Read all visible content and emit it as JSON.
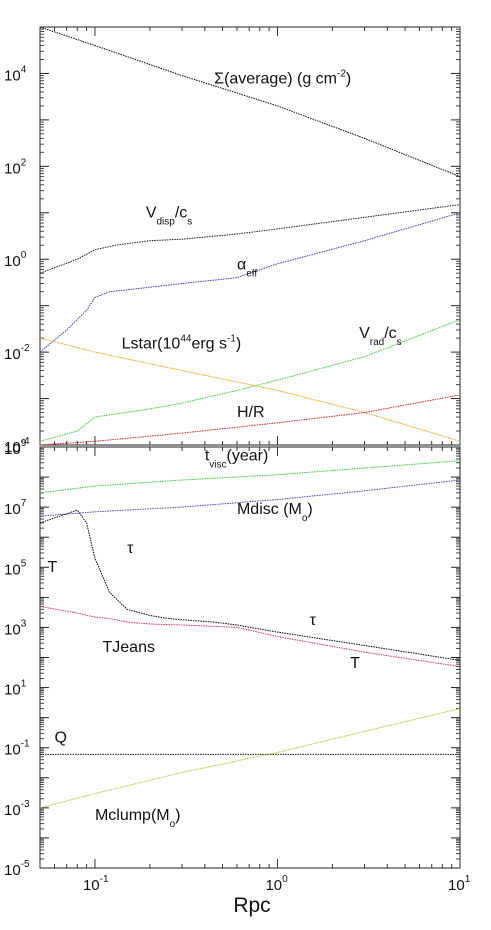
{
  "chart_data": [
    {
      "type": "line",
      "panel": "top",
      "xscale": "log",
      "yscale": "log",
      "xlim": [
        0.05,
        10
      ],
      "ylim": [
        0.0001,
        100000
      ],
      "yticks": [
        {
          "value": 10000,
          "base": "10",
          "exp": "4"
        },
        {
          "value": 100,
          "base": "10",
          "exp": "2"
        },
        {
          "value": 1,
          "base": "10",
          "exp": "0"
        },
        {
          "value": 0.01,
          "base": "10",
          "exp": "-2"
        },
        {
          "value": 0.0001,
          "base": "10",
          "exp": "-4"
        }
      ],
      "series": [
        {
          "color": "#000000",
          "x": [
            0.05,
            0.1,
            0.3,
            1,
            3,
            10
          ],
          "y": [
            100000,
            40000,
            9000,
            2000,
            400,
            60
          ]
        },
        {
          "color": "#1a1a1a",
          "x": [
            0.05,
            0.08,
            0.1,
            0.13,
            0.2,
            0.3,
            0.6,
            1,
            3,
            10
          ],
          "y": [
            0.5,
            1,
            1.6,
            2,
            2.5,
            2.7,
            3.5,
            4.5,
            8,
            15
          ]
        },
        {
          "color": "#3a3acc",
          "x": [
            0.05,
            0.07,
            0.09,
            0.1,
            0.12,
            0.15,
            0.2,
            0.3,
            0.6,
            1,
            3,
            10
          ],
          "y": [
            0.01,
            0.03,
            0.08,
            0.15,
            0.2,
            0.22,
            0.25,
            0.3,
            0.4,
            0.8,
            2.5,
            10
          ]
        },
        {
          "color": "#33cc33",
          "x": [
            0.05,
            0.08,
            0.1,
            0.2,
            0.3,
            0.6,
            1,
            3,
            10
          ],
          "y": [
            0.00012,
            0.0002,
            0.0004,
            0.0006,
            0.0008,
            0.0015,
            0.0025,
            0.008,
            0.05
          ]
        },
        {
          "color": "#ff9900",
          "x": [
            0.05,
            0.1,
            0.3,
            1,
            3,
            10
          ],
          "y": [
            0.02,
            0.01,
            0.004,
            0.0015,
            0.0005,
            0.00012
          ]
        },
        {
          "color": "#dd2222",
          "x": [
            0.05,
            0.1,
            0.3,
            1,
            3,
            10
          ],
          "y": [
            0.0001,
            0.00012,
            0.00018,
            0.0003,
            0.0005,
            0.0012
          ]
        }
      ],
      "annotations": [
        {
          "text": "Σ(average) (g cm",
          "sup": "-2",
          "tail": ")",
          "x": 0.45,
          "y": 6000
        },
        {
          "text": "V",
          "sub": "disp",
          "mid": "/c",
          "sub2": "s",
          "x": 0.19,
          "y": 8
        },
        {
          "text": "α",
          "sub": "eff",
          "x": 0.6,
          "y": 0.6
        },
        {
          "text": "Lstar(10",
          "sup": "44",
          "tail": "erg s",
          "sup2": "-1",
          "tail2": ")",
          "x": 0.14,
          "y": 0.012
        },
        {
          "text": "V",
          "sub": "rad",
          "mid": "/c",
          "sub2": "s",
          "x": 2.8,
          "y": 0.02
        },
        {
          "text": "H/R",
          "x": 0.6,
          "y": 0.0004
        }
      ]
    },
    {
      "type": "line",
      "panel": "bottom",
      "xscale": "log",
      "yscale": "log",
      "xlim": [
        0.05,
        10
      ],
      "ylim": [
        1e-05,
        1000000000
      ],
      "xlabel": "Rpc",
      "xticks": [
        {
          "value": 0.1,
          "base": "10",
          "exp": "-1"
        },
        {
          "value": 1,
          "base": "10",
          "exp": "0"
        },
        {
          "value": 10,
          "base": "10",
          "exp": "1"
        }
      ],
      "yticks": [
        {
          "value": 1000000000,
          "base": "10",
          "exp": "9"
        },
        {
          "value": 10000000,
          "base": "10",
          "exp": "7"
        },
        {
          "value": 100000,
          "base": "10",
          "exp": "5"
        },
        {
          "value": 1000,
          "base": "10",
          "exp": "3"
        },
        {
          "value": 10,
          "base": "10",
          "exp": "1"
        },
        {
          "value": 0.1,
          "base": "10",
          "exp": "-1"
        },
        {
          "value": 0.001,
          "base": "10",
          "exp": "-3"
        },
        {
          "value": 1e-05,
          "base": "10",
          "exp": "-5"
        }
      ],
      "series": [
        {
          "color": "#33cc33",
          "x": [
            0.05,
            0.1,
            0.3,
            1,
            3,
            10
          ],
          "y": [
            30000000,
            50000000,
            80000000,
            120000000,
            200000000,
            350000000
          ]
        },
        {
          "color": "#4444cc",
          "x": [
            0.05,
            0.1,
            0.3,
            1,
            3,
            10
          ],
          "y": [
            5000000,
            7000000,
            10000000,
            18000000,
            35000000,
            80000000
          ]
        },
        {
          "color": "#000000",
          "x": [
            0.05,
            0.07,
            0.08,
            0.09,
            0.1,
            0.12,
            0.15,
            0.2,
            0.25,
            0.3,
            0.45,
            0.6,
            1,
            3,
            10
          ],
          "y": [
            3000000,
            6000000,
            8000000,
            3000000,
            200000,
            15000,
            4000,
            2500,
            2000,
            1800,
            1500,
            1200,
            700,
            250,
            80
          ]
        },
        {
          "color": "#dd3355",
          "x": [
            0.05,
            0.08,
            0.1,
            0.12,
            0.15,
            0.2,
            0.3,
            0.6,
            1,
            3,
            10
          ],
          "y": [
            5000,
            3000,
            2200,
            2000,
            1500,
            1300,
            1200,
            1000,
            500,
            150,
            50
          ]
        },
        {
          "color": "#1a1a1a",
          "x": [
            0.05,
            10
          ],
          "y": [
            0.06,
            0.06
          ]
        },
        {
          "color": "#bbbb33",
          "x": [
            0.05,
            0.1,
            0.3,
            1,
            3,
            10
          ],
          "y": [
            0.001,
            0.003,
            0.015,
            0.07,
            0.35,
            2
          ]
        }
      ],
      "annotations": [
        {
          "text": "t",
          "sub": "visc",
          "tail": "(year)",
          "x": 0.4,
          "y": 350000000
        },
        {
          "text": "Mdisc (M",
          "sub": "o",
          "tail": ")",
          "x": 0.6,
          "y": 6000000
        },
        {
          "text": "T",
          "x": 0.055,
          "y": 70000
        },
        {
          "text": "τ",
          "x": 0.15,
          "y": 300000
        },
        {
          "text": "τ",
          "x": 1.5,
          "y": 1200
        },
        {
          "text": "TJeans",
          "x": 0.11,
          "y": 150
        },
        {
          "text": "T",
          "x": 2.5,
          "y": 45
        },
        {
          "text": "Q",
          "x": 0.06,
          "y": 0.15
        },
        {
          "text": "Mclump(M",
          "sub": "o",
          "tail": ")",
          "x": 0.1,
          "y": 0.0004
        }
      ]
    }
  ]
}
